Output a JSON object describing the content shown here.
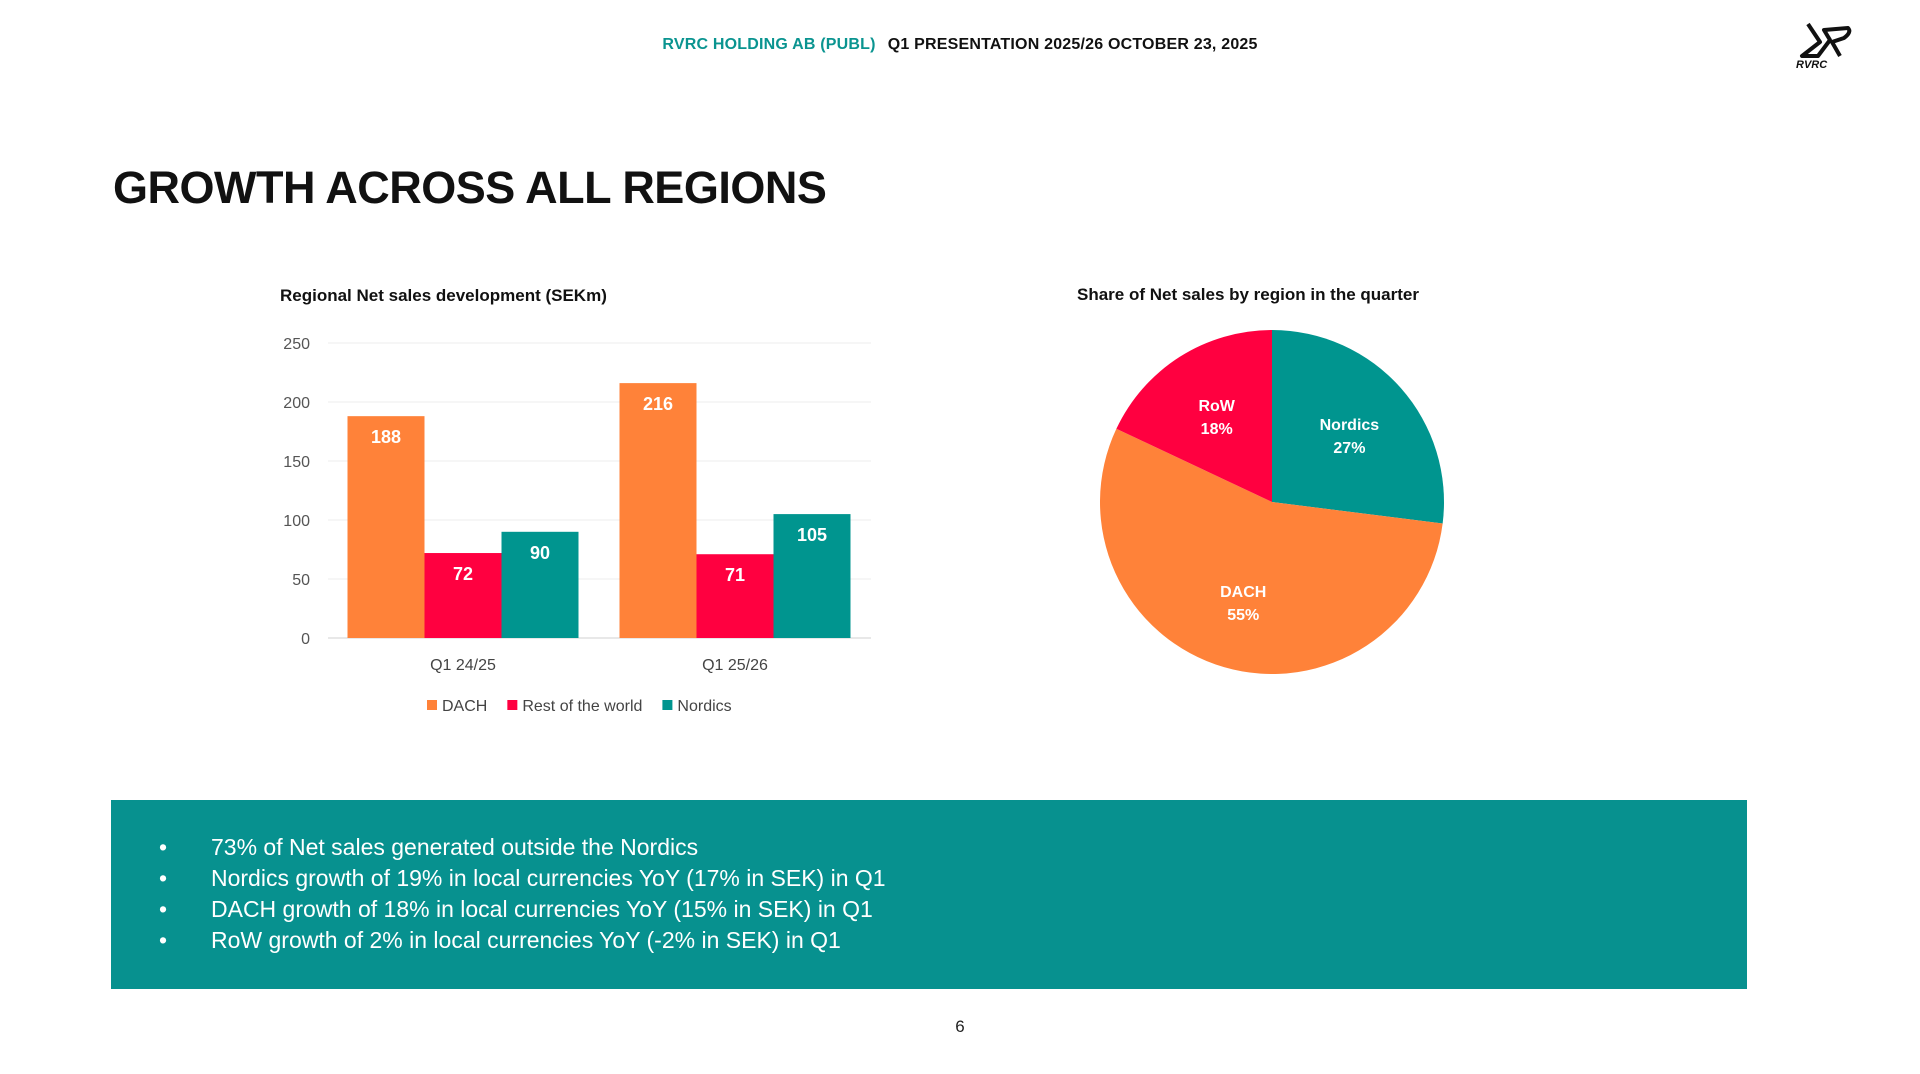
{
  "header": {
    "company": "RVRC HOLDING AB (PUBL)",
    "presentation": "Q1 PRESENTATION 2025/26  OCTOBER 23, 2025"
  },
  "logo": {
    "text": "RVRC"
  },
  "title": "GROWTH ACROSS ALL REGIONS",
  "colors": {
    "dach": "#ff8239",
    "row": "#ff0040",
    "nordics": "#00958f",
    "box": "#07918f"
  },
  "chart_data": [
    {
      "type": "bar",
      "title": "Regional Net sales development (SEKm)",
      "categories": [
        "Q1 24/25",
        "Q1 25/26"
      ],
      "series": [
        {
          "name": "DACH",
          "values": [
            188,
            216
          ]
        },
        {
          "name": "Rest of the world",
          "values": [
            72,
            71
          ]
        },
        {
          "name": "Nordics",
          "values": [
            90,
            105
          ]
        }
      ],
      "yticks": [
        "0",
        "50",
        "100",
        "150",
        "200",
        "250"
      ],
      "ylim": [
        0,
        250
      ],
      "grid": true,
      "legend": "bottom"
    },
    {
      "type": "pie",
      "title": "Share of Net sales by region in the quarter",
      "slices": [
        {
          "label": "Nordics",
          "value": 27,
          "text": "27%"
        },
        {
          "label": "DACH",
          "value": 55,
          "text": "55%"
        },
        {
          "label": "RoW",
          "value": 18,
          "text": "18%"
        }
      ]
    }
  ],
  "bullets": [
    "73% of Net sales generated outside the Nordics",
    "Nordics growth of 19% in local currencies YoY (17% in SEK) in Q1",
    "DACH growth of 18% in local currencies YoY (15% in SEK) in Q1",
    "RoW growth of 2% in local currencies YoY (-2% in SEK) in Q1"
  ],
  "bullet_char": "•",
  "page_number": "6"
}
